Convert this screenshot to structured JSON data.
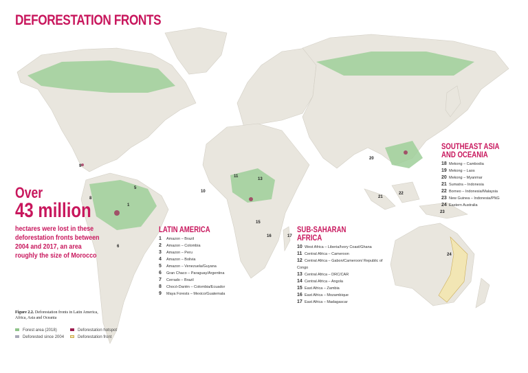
{
  "title": "DEFORESTATION FRONTS",
  "headline": {
    "over": "Over",
    "amount": "43 million",
    "description": "hectares were lost in these deforestation fronts between 2004 and 2017, an area roughly the size of Morocco"
  },
  "regions": [
    {
      "name": "LATIN AMERICA",
      "fronts": [
        {
          "num": "1",
          "label": "Amazon – Brazil"
        },
        {
          "num": "2",
          "label": "Amazon – Colombia"
        },
        {
          "num": "3",
          "label": "Amazon – Peru"
        },
        {
          "num": "4",
          "label": "Amazon – Bolivia"
        },
        {
          "num": "5",
          "label": "Amazon – Venezuela/Guyana"
        },
        {
          "num": "6",
          "label": "Gran Chaco – Paraguay/Argentina"
        },
        {
          "num": "7",
          "label": "Cerrado – Brazil"
        },
        {
          "num": "8",
          "label": "Chocó-Darién – Colombia/Ecuador"
        },
        {
          "num": "9",
          "label": "Maya Forests – Mexico/Guatemala"
        }
      ]
    },
    {
      "name": "SUB-SAHARAN AFRICA",
      "fronts": [
        {
          "num": "10",
          "label": "West Africa – Liberia/Ivory Coast/Ghana"
        },
        {
          "num": "11",
          "label": "Central Africa – Cameroon"
        },
        {
          "num": "12",
          "label": "Central Africa – Gabon/Cameroon/ Republic of Congo"
        },
        {
          "num": "13",
          "label": "Central Africa – DRC/CAR"
        },
        {
          "num": "14",
          "label": "Central Africa – Angola"
        },
        {
          "num": "15",
          "label": "East Africa – Zambia"
        },
        {
          "num": "16",
          "label": "East Africa – Mozambique"
        },
        {
          "num": "17",
          "label": "East Africa – Madagascar"
        }
      ]
    },
    {
      "name": "SOUTHEAST ASIA AND OCEANIA",
      "fronts": [
        {
          "num": "18",
          "label": "Mekong – Cambodia"
        },
        {
          "num": "19",
          "label": "Mekong – Laos"
        },
        {
          "num": "20",
          "label": "Mekong – Myanmar"
        },
        {
          "num": "21",
          "label": "Sumatra – Indonesia"
        },
        {
          "num": "22",
          "label": "Borneo – Indonesia/Malaysia"
        },
        {
          "num": "23",
          "label": "New Guinea – Indonesia/PNG"
        },
        {
          "num": "24",
          "label": "Eastern Australia"
        }
      ]
    }
  ],
  "caption": {
    "figure": "Figure 2.2.",
    "text": "Deforestation fronts in Latin America, Africa, Asia and Oceania"
  },
  "legend": [
    {
      "label": "Forest area (2018)",
      "color": "#8fc48a"
    },
    {
      "label": "Deforestation hotspot",
      "color": "#9b1b4e"
    },
    {
      "label": "Deforested since 2004",
      "color": "#a9a9b8"
    },
    {
      "label": "Deforestation front",
      "color": "#f3e6b0"
    }
  ],
  "colors": {
    "accent": "#c8175d",
    "land": "#e9e6de",
    "forest": "#9fcf9a"
  }
}
